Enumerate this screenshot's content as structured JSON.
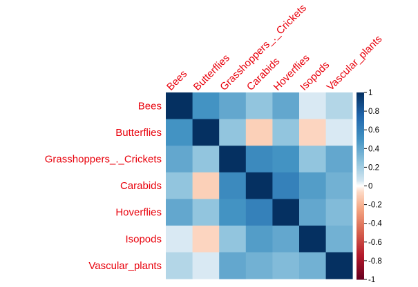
{
  "chart_data": {
    "type": "heatmap",
    "variables": [
      "Bees",
      "Butterflies",
      "Grasshoppers_._Crickets",
      "Carabids",
      "Hoverflies",
      "Isopods",
      "Vascular_plants"
    ],
    "matrix": [
      [
        1.0,
        0.5,
        0.4,
        0.25,
        0.4,
        0.05,
        0.15
      ],
      [
        0.5,
        1.0,
        0.25,
        -0.1,
        0.25,
        -0.08,
        0.05
      ],
      [
        0.4,
        0.25,
        1.0,
        0.55,
        0.5,
        0.25,
        0.4
      ],
      [
        0.25,
        -0.1,
        0.55,
        1.0,
        0.6,
        0.45,
        0.35
      ],
      [
        0.4,
        0.25,
        0.5,
        0.6,
        1.0,
        0.4,
        0.3
      ],
      [
        0.05,
        -0.08,
        0.25,
        0.45,
        0.4,
        1.0,
        0.35
      ],
      [
        0.15,
        0.05,
        0.4,
        0.35,
        0.3,
        0.35,
        1.0
      ]
    ],
    "color_scale": {
      "range": [
        -1,
        1
      ],
      "ticks": [
        "1",
        "0.8",
        "0.6",
        "0.4",
        "0.2",
        "0",
        "-0.2",
        "-0.4",
        "-0.6",
        "-0.8",
        "-1"
      ],
      "negative_color": "#67001F",
      "mid_color": "#FFFFFF",
      "positive_color": "#053061"
    },
    "label_color": "#E8000B"
  }
}
